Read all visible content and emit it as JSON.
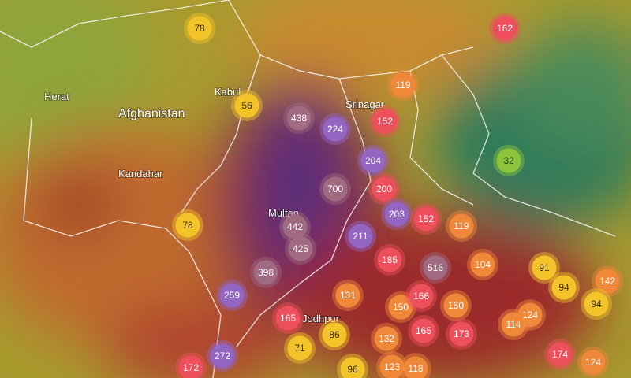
{
  "places": [
    "Herat",
    "Afghanistan",
    "Kabul",
    "Kandahar",
    "Srinagar",
    "Multan",
    "Jodhpur"
  ],
  "markers": [
    78,
    162,
    119,
    56,
    438,
    224,
    152,
    204,
    32,
    700,
    200,
    203,
    152,
    119,
    78,
    442,
    211,
    425,
    185,
    516,
    104,
    91,
    94,
    142,
    398,
    259,
    131,
    150,
    166,
    150,
    94,
    165,
    86,
    71,
    132,
    165,
    173,
    114,
    124,
    174,
    124,
    272,
    172,
    96,
    123,
    118
  ]
}
